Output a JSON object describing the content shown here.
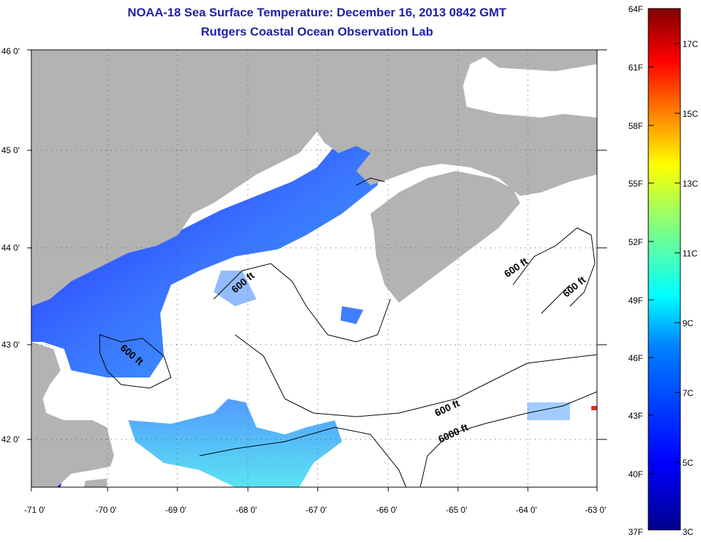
{
  "title": {
    "line1": "NOAA-18 Sea Surface Temperature:  December 16, 2013 0842 GMT",
    "line2": "Rutgers Coastal Ocean Observation Lab"
  },
  "map": {
    "lat_labels": [
      "46 0'",
      "45 0'",
      "44 0'",
      "43 0'",
      "42 0'"
    ],
    "lon_labels": [
      "-71 0'",
      "-70 0'",
      "-69 0'",
      "-68 0'",
      "-67 0'",
      "-66 0'",
      "-65 0'",
      "-64 0'",
      "-63 0'"
    ],
    "contour_labels": [
      "600 ft",
      "600 ft",
      "600 ft",
      "600 ft",
      "600 ft",
      "6000 ft"
    ],
    "colors": {
      "land": "#b3b3b3",
      "no_data": "#ffffff",
      "contour": "#000000"
    }
  },
  "colorbar": {
    "fahrenheit_labels": [
      "64F",
      "61F",
      "58F",
      "55F",
      "52F",
      "49F",
      "46F",
      "43F",
      "40F",
      "37F"
    ],
    "celsius_labels": [
      "17C",
      "15C",
      "13C",
      "11C",
      "9C",
      "7C",
      "5C",
      "3C"
    ],
    "colors": [
      "#00008f",
      "#0000ff",
      "#0080ff",
      "#00ffff",
      "#80ff80",
      "#ffff00",
      "#ff8000",
      "#ff0000",
      "#800000"
    ]
  }
}
